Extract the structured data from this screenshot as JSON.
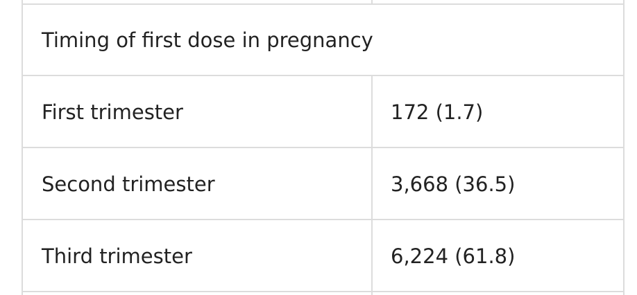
{
  "table": {
    "header": "Timing of first dose in pregnancy",
    "rows": [
      [
        "First trimester",
        "172 (1.7)"
      ],
      [
        "Second trimester",
        "3,668 (36.5)"
      ],
      [
        "Third trimester",
        "6,224 (61.8)"
      ]
    ]
  }
}
